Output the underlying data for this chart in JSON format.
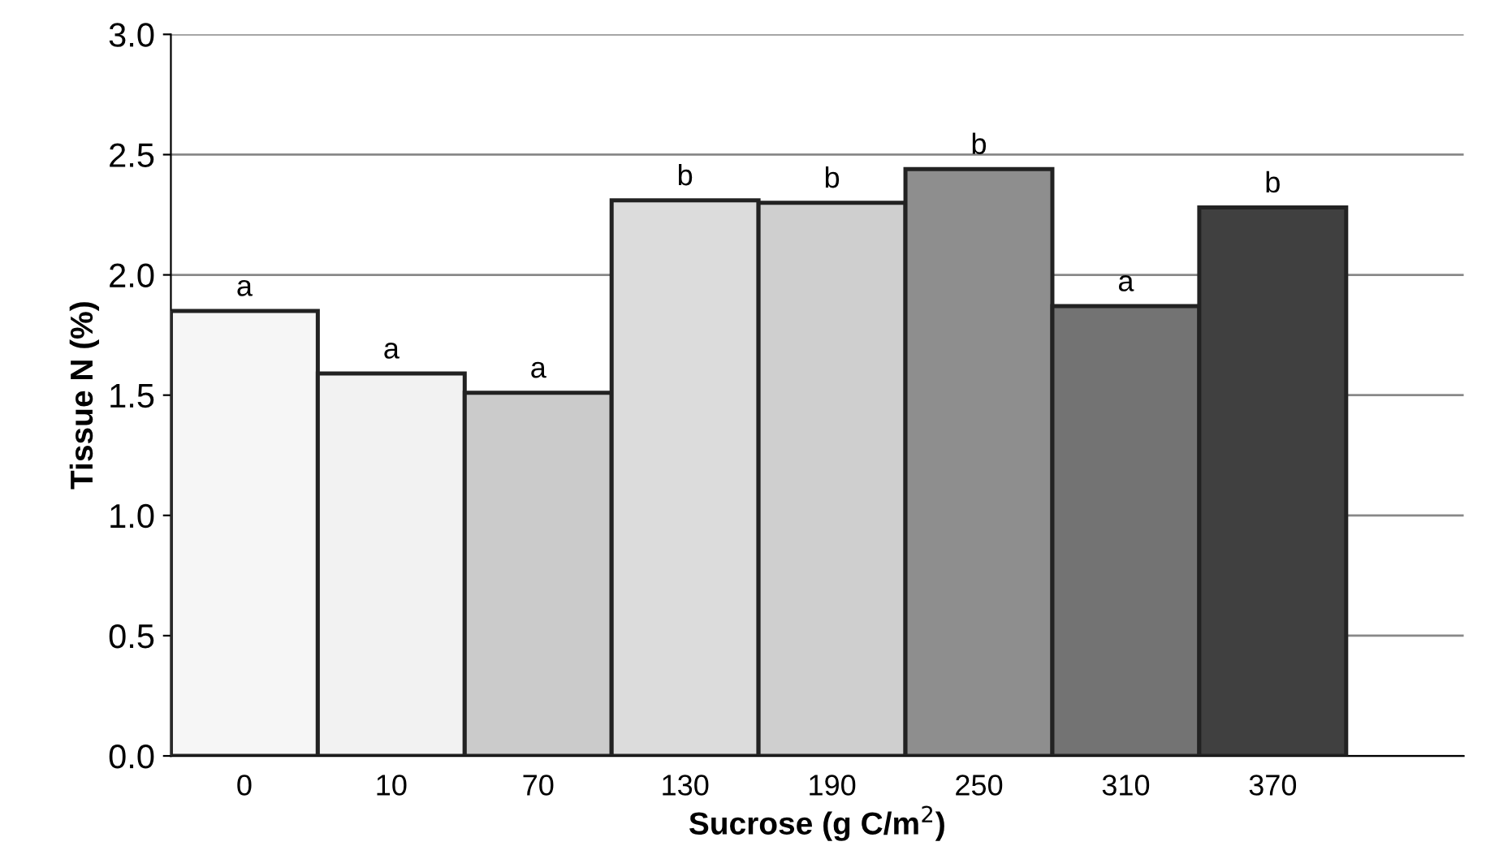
{
  "chart_data": {
    "type": "bar",
    "xlabel": "Sucrose (g C/m$^{2}$)",
    "ylabel": "Tissue N (%)",
    "categories": [
      "0",
      "10",
      "70",
      "130",
      "190",
      "250",
      "310",
      "370"
    ],
    "values": [
      1.85,
      1.59,
      1.51,
      2.31,
      2.3,
      2.44,
      1.87,
      2.28
    ],
    "colors": [
      "#f6f6f6",
      "#f2f2f2",
      "#cbcbcb",
      "#dcdcdc",
      "#cfcfcf",
      "#8e8e8e",
      "#737373",
      "#404040"
    ],
    "value_labels": [
      "a",
      "a",
      "a",
      "b",
      "b",
      "b",
      "a",
      "b"
    ],
    "ylim": [
      0,
      3
    ],
    "yticks": [
      {
        "value": 0,
        "label": "0.0"
      },
      {
        "value": 0.5,
        "label": "0.5"
      },
      {
        "value": 1,
        "label": "1.0"
      },
      {
        "value": 1.5,
        "label": "1.5"
      },
      {
        "value": 2,
        "label": "2.0"
      },
      {
        "value": 2.5,
        "label": "2.5"
      },
      {
        "value": 3,
        "label": "3.0"
      }
    ],
    "grid": "y"
  }
}
